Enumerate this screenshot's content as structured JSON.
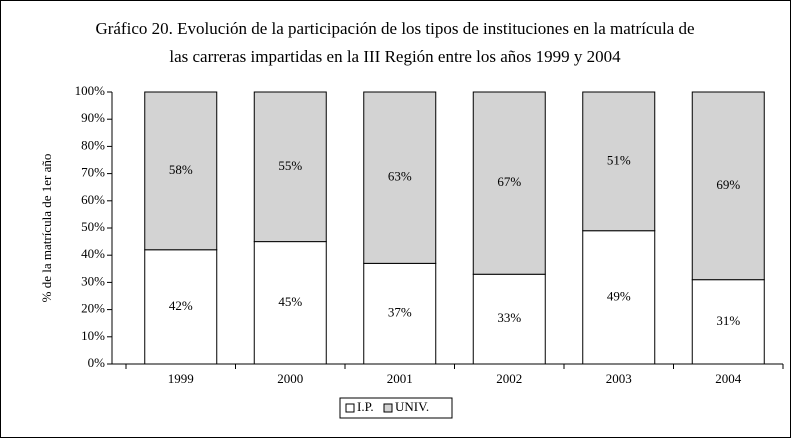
{
  "chart_data": {
    "type": "stacked_bar",
    "title": [
      "Gráfico 20. Evolución de la participación de los tipos de instituciones en la matrícula de",
      "las carreras impartidas en la III Región entre los años 1999 y 2004"
    ],
    "ylabel": "% de la matrícula de 1er año",
    "categories": [
      "1999",
      "2000",
      "2001",
      "2002",
      "2003",
      "2004"
    ],
    "series": [
      {
        "name": "I.P.",
        "color": "#ffffff",
        "values": [
          42,
          45,
          37,
          33,
          49,
          31
        ],
        "value_labels": [
          "42%",
          "45%",
          "37%",
          "33%",
          "49%",
          "31%"
        ]
      },
      {
        "name": "UNIV.",
        "color": "#d3d3d3",
        "values": [
          58,
          55,
          63,
          67,
          51,
          69
        ],
        "value_labels": [
          "58%",
          "55%",
          "63%",
          "67%",
          "51%",
          "69%"
        ]
      }
    ],
    "ylim": [
      0,
      100
    ],
    "yticks": [
      {
        "value": 0,
        "label": "0%"
      },
      {
        "value": 10,
        "label": "10%"
      },
      {
        "value": 20,
        "label": "20%"
      },
      {
        "value": 30,
        "label": "30%"
      },
      {
        "value": 40,
        "label": "40%"
      },
      {
        "value": 50,
        "label": "50%"
      },
      {
        "value": 60,
        "label": "60%"
      },
      {
        "value": 70,
        "label": "70%"
      },
      {
        "value": 80,
        "label": "80%"
      },
      {
        "value": 90,
        "label": "90%"
      },
      {
        "value": 100,
        "label": "100%"
      }
    ],
    "legend": "bottom"
  }
}
